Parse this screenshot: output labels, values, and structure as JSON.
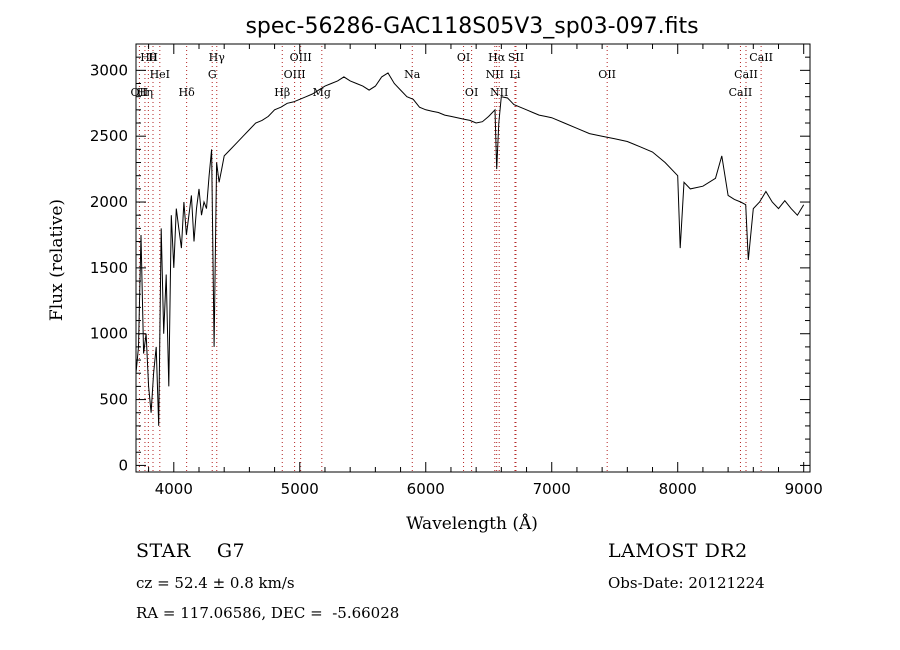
{
  "chart_data": {
    "type": "line",
    "title": "spec-56286-GAC118S05V3_sp03-097.fits",
    "xlabel": "Wavelength (Å)",
    "ylabel": "Flux (relative)",
    "xlim": [
      3700,
      9050
    ],
    "ylim": [
      -50,
      3200
    ],
    "x_ticks": [
      4000,
      5000,
      6000,
      7000,
      8000,
      9000
    ],
    "y_ticks": [
      0,
      500,
      1000,
      1500,
      2000,
      2500,
      3000
    ],
    "line_color": "#000000",
    "marker_color": "#b22222",
    "series": [
      {
        "x": [
          3700,
          3720,
          3740,
          3760,
          3780,
          3800,
          3820,
          3840,
          3860,
          3880,
          3900,
          3920,
          3940,
          3960,
          3980,
          4000,
          4020,
          4040,
          4060,
          4080,
          4100,
          4120,
          4140,
          4160,
          4180,
          4200,
          4220,
          4240,
          4260,
          4280,
          4300,
          4320,
          4340,
          4360,
          4380,
          4400,
          4450,
          4500,
          4550,
          4600,
          4650,
          4700,
          4750,
          4800,
          4850,
          4900,
          4950,
          5000,
          5050,
          5100,
          5150,
          5200,
          5250,
          5300,
          5350,
          5400,
          5450,
          5500,
          5550,
          5600,
          5650,
          5700,
          5750,
          5800,
          5850,
          5900,
          5950,
          6000,
          6050,
          6100,
          6150,
          6200,
          6250,
          6300,
          6350,
          6400,
          6450,
          6500,
          6550,
          6563,
          6580,
          6600,
          6650,
          6700,
          6750,
          6800,
          6850,
          6900,
          6950,
          7000,
          7100,
          7200,
          7300,
          7400,
          7500,
          7600,
          7700,
          7800,
          7900,
          8000,
          8020,
          8050,
          8100,
          8200,
          8300,
          8350,
          8400,
          8450,
          8500,
          8540,
          8560,
          8600,
          8650,
          8700,
          8750,
          8800,
          8850,
          8900,
          8950,
          9000
        ],
        "values": [
          700,
          900,
          1750,
          850,
          1000,
          600,
          400,
          700,
          900,
          300,
          1800,
          1000,
          1450,
          600,
          1900,
          1500,
          1950,
          1800,
          1650,
          2000,
          1750,
          1900,
          2050,
          1700,
          1950,
          2100,
          1900,
          2000,
          1950,
          2200,
          2400,
          900,
          2300,
          2150,
          2250,
          2350,
          2400,
          2450,
          2500,
          2550,
          2600,
          2620,
          2650,
          2700,
          2720,
          2750,
          2760,
          2780,
          2800,
          2820,
          2850,
          2880,
          2900,
          2920,
          2950,
          2920,
          2900,
          2880,
          2850,
          2880,
          2950,
          2980,
          2900,
          2850,
          2800,
          2780,
          2720,
          2700,
          2690,
          2680,
          2660,
          2650,
          2640,
          2630,
          2620,
          2600,
          2610,
          2650,
          2700,
          2250,
          2600,
          2800,
          2790,
          2740,
          2720,
          2700,
          2680,
          2660,
          2650,
          2640,
          2600,
          2560,
          2520,
          2500,
          2480,
          2460,
          2420,
          2380,
          2300,
          2200,
          1650,
          2150,
          2100,
          2120,
          2180,
          2350,
          2050,
          2020,
          2000,
          1980,
          1560,
          1950,
          2000,
          2080,
          2000,
          1950,
          2010,
          1950,
          1900,
          1980
        ]
      }
    ],
    "lines": [
      {
        "label": "Hθ",
        "x": 3798,
        "row": 0
      },
      {
        "label": "H",
        "x": 3835,
        "row": 0
      },
      {
        "label": "HeI",
        "x": 3889,
        "row": 1
      },
      {
        "label": "OII",
        "x": 3727,
        "row": 2
      },
      {
        "label": "Hη",
        "x": 3771,
        "row": 2
      },
      {
        "label": "Hδ",
        "x": 4102,
        "row": 2
      },
      {
        "label": "Hγ",
        "x": 4341,
        "row": 0
      },
      {
        "label": "G",
        "x": 4305,
        "row": 1
      },
      {
        "label": "OIII",
        "x": 5007,
        "row": 0
      },
      {
        "label": "OIII",
        "x": 4959,
        "row": 1
      },
      {
        "label": "Hβ",
        "x": 4861,
        "row": 2
      },
      {
        "label": "Mg",
        "x": 5175,
        "row": 2
      },
      {
        "label": "Na",
        "x": 5893,
        "row": 1
      },
      {
        "label": "OI",
        "x": 6300,
        "row": 0
      },
      {
        "label": "OI",
        "x": 6364,
        "row": 2
      },
      {
        "label": "Hα",
        "x": 6563,
        "row": 0
      },
      {
        "label": "SII",
        "x": 6716,
        "row": 0
      },
      {
        "label": "NII",
        "x": 6548,
        "row": 1
      },
      {
        "label": "Li",
        "x": 6708,
        "row": 1
      },
      {
        "label": "NII",
        "x": 6583,
        "row": 2
      },
      {
        "label": "OII",
        "x": 7440,
        "row": 1
      },
      {
        "label": "CaII",
        "x": 8662,
        "row": 0
      },
      {
        "label": "CaII",
        "x": 8542,
        "row": 1
      },
      {
        "label": "CaII",
        "x": 8498,
        "row": 2
      }
    ]
  },
  "info": {
    "class": "STAR    G7",
    "survey": "LAMOST DR2",
    "cz": "cz = 52.4 ± 0.8 km/s",
    "obs_date": "Obs-Date: 20121224",
    "coords": "RA = 117.06586, DEC =  -5.66028"
  }
}
